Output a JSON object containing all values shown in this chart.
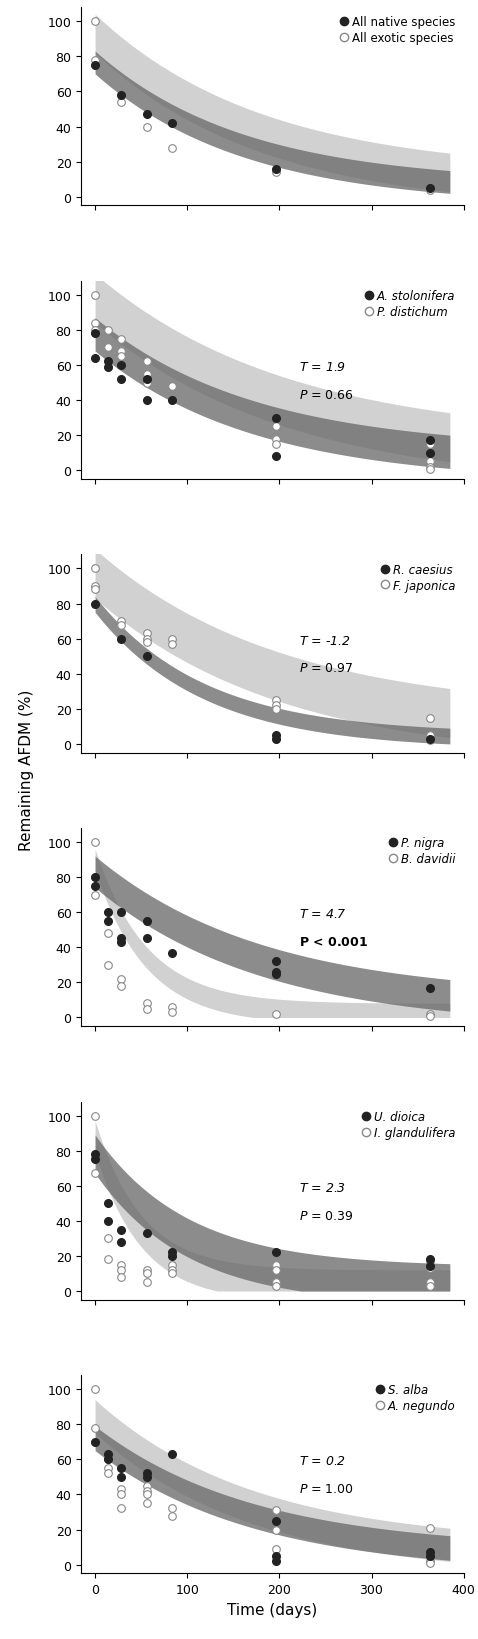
{
  "panels": [
    {
      "native_label": "All native species",
      "exotic_label": "All exotic species",
      "stats": null,
      "italic": false,
      "native_pts": [
        [
          0,
          75
        ],
        [
          28,
          58
        ],
        [
          56,
          47
        ],
        [
          84,
          42
        ],
        [
          196,
          16
        ],
        [
          364,
          5
        ]
      ],
      "exotic_pts": [
        [
          0,
          100
        ],
        [
          0,
          78
        ],
        [
          28,
          54
        ],
        [
          56,
          40
        ],
        [
          84,
          28
        ],
        [
          196,
          14
        ],
        [
          364,
          4
        ]
      ],
      "n_curve_params": [
        75,
        0.0062
      ],
      "e_curve_params": [
        90,
        0.0055
      ],
      "n_band_lo": 5,
      "n_band_hi": 8,
      "e_band_lo": 8,
      "e_band_hi": 14
    },
    {
      "native_label": "A. stolonifera",
      "exotic_label": "P. distichum",
      "stats": {
        "T": "1.9",
        "P": "0.66",
        "bold_p": false
      },
      "italic": true,
      "native_pts": [
        [
          0,
          78
        ],
        [
          0,
          64
        ],
        [
          14,
          62
        ],
        [
          14,
          59
        ],
        [
          28,
          60
        ],
        [
          28,
          52
        ],
        [
          56,
          52
        ],
        [
          56,
          40
        ],
        [
          84,
          40
        ],
        [
          196,
          8
        ],
        [
          196,
          30
        ],
        [
          364,
          17
        ],
        [
          364,
          10
        ]
      ],
      "exotic_pts": [
        [
          0,
          100
        ],
        [
          0,
          84
        ],
        [
          0,
          80
        ],
        [
          14,
          80
        ],
        [
          14,
          70
        ],
        [
          28,
          75
        ],
        [
          28,
          68
        ],
        [
          28,
          65
        ],
        [
          56,
          62
        ],
        [
          56,
          55
        ],
        [
          56,
          50
        ],
        [
          84,
          48
        ],
        [
          196,
          25
        ],
        [
          196,
          18
        ],
        [
          196,
          15
        ],
        [
          364,
          15
        ],
        [
          364,
          5
        ],
        [
          364,
          2
        ],
        [
          364,
          1
        ]
      ],
      "n_curve_params": [
        75,
        0.0058
      ],
      "e_curve_params": [
        94,
        0.0048
      ],
      "n_band_lo": 7,
      "n_band_hi": 12,
      "e_band_lo": 10,
      "e_band_hi": 18
    },
    {
      "native_label": "R. caesius",
      "exotic_label": "F. japonica",
      "stats": {
        "T": "-1.2",
        "P": "0.97",
        "bold_p": false
      },
      "italic": true,
      "native_pts": [
        [
          0,
          80
        ],
        [
          28,
          60
        ],
        [
          56,
          50
        ],
        [
          196,
          5
        ],
        [
          196,
          3
        ],
        [
          364,
          3
        ]
      ],
      "exotic_pts": [
        [
          0,
          100
        ],
        [
          0,
          90
        ],
        [
          0,
          88
        ],
        [
          28,
          70
        ],
        [
          28,
          68
        ],
        [
          56,
          63
        ],
        [
          56,
          60
        ],
        [
          56,
          58
        ],
        [
          84,
          60
        ],
        [
          84,
          57
        ],
        [
          196,
          25
        ],
        [
          196,
          22
        ],
        [
          196,
          20
        ],
        [
          364,
          15
        ],
        [
          364,
          5
        ],
        [
          364,
          2
        ]
      ],
      "n_curve_params": [
        78,
        0.0085
      ],
      "e_curve_params": [
        93,
        0.005
      ],
      "n_band_lo": 3,
      "n_band_hi": 6,
      "e_band_lo": 10,
      "e_band_hi": 18
    },
    {
      "native_label": "P. nigra",
      "exotic_label": "B. davidii",
      "stats": {
        "T": "4.7",
        "P": "< 0.001",
        "bold_p": true
      },
      "italic": true,
      "native_pts": [
        [
          0,
          80
        ],
        [
          0,
          75
        ],
        [
          14,
          60
        ],
        [
          14,
          55
        ],
        [
          28,
          60
        ],
        [
          28,
          45
        ],
        [
          28,
          43
        ],
        [
          56,
          55
        ],
        [
          56,
          45
        ],
        [
          84,
          37
        ],
        [
          196,
          32
        ],
        [
          196,
          26
        ],
        [
          196,
          25
        ],
        [
          364,
          17
        ]
      ],
      "exotic_pts": [
        [
          0,
          100
        ],
        [
          0,
          70
        ],
        [
          14,
          48
        ],
        [
          14,
          30
        ],
        [
          28,
          22
        ],
        [
          28,
          18
        ],
        [
          56,
          8
        ],
        [
          56,
          5
        ],
        [
          84,
          6
        ],
        [
          84,
          3
        ],
        [
          196,
          2
        ],
        [
          364,
          2
        ],
        [
          364,
          1
        ]
      ],
      "n_curve_params": [
        80,
        0.0055
      ],
      "e_curve_params": [
        88,
        0.018
      ],
      "n_band_lo": 6,
      "n_band_hi": 12,
      "e_band_lo": 4,
      "e_band_hi": 8
    },
    {
      "native_label": "U. dioica",
      "exotic_label": "I. glandulifera",
      "stats": {
        "T": "2.3",
        "P": "0.39",
        "bold_p": false
      },
      "italic": true,
      "native_pts": [
        [
          0,
          78
        ],
        [
          0,
          75
        ],
        [
          14,
          50
        ],
        [
          14,
          40
        ],
        [
          28,
          35
        ],
        [
          28,
          28
        ],
        [
          56,
          33
        ],
        [
          84,
          22
        ],
        [
          84,
          20
        ],
        [
          196,
          22
        ],
        [
          364,
          18
        ],
        [
          364,
          14
        ]
      ],
      "exotic_pts": [
        [
          0,
          100
        ],
        [
          0,
          67
        ],
        [
          14,
          30
        ],
        [
          14,
          18
        ],
        [
          28,
          15
        ],
        [
          28,
          12
        ],
        [
          28,
          8
        ],
        [
          56,
          12
        ],
        [
          56,
          10
        ],
        [
          56,
          5
        ],
        [
          84,
          15
        ],
        [
          84,
          12
        ],
        [
          84,
          10
        ],
        [
          196,
          15
        ],
        [
          196,
          12
        ],
        [
          196,
          5
        ],
        [
          196,
          3
        ],
        [
          364,
          17
        ],
        [
          364,
          13
        ],
        [
          364,
          5
        ],
        [
          364,
          3
        ]
      ],
      "n_curve_params": [
        75,
        0.01
      ],
      "e_curve_params": [
        85,
        0.02
      ],
      "n_band_lo": 8,
      "n_band_hi": 14,
      "e_band_lo": 6,
      "e_band_hi": 12
    },
    {
      "native_label": "S. alba",
      "exotic_label": "A. negundo",
      "stats": {
        "T": "0.2",
        "P": "1.00",
        "bold_p": false
      },
      "italic": true,
      "native_pts": [
        [
          0,
          70
        ],
        [
          14,
          63
        ],
        [
          14,
          60
        ],
        [
          28,
          55
        ],
        [
          28,
          50
        ],
        [
          56,
          52
        ],
        [
          56,
          50
        ],
        [
          84,
          63
        ],
        [
          196,
          25
        ],
        [
          196,
          5
        ],
        [
          196,
          2
        ],
        [
          364,
          7
        ],
        [
          364,
          5
        ]
      ],
      "exotic_pts": [
        [
          0,
          100
        ],
        [
          0,
          78
        ],
        [
          14,
          60
        ],
        [
          14,
          55
        ],
        [
          14,
          52
        ],
        [
          28,
          43
        ],
        [
          28,
          40
        ],
        [
          28,
          32
        ],
        [
          56,
          45
        ],
        [
          56,
          42
        ],
        [
          56,
          40
        ],
        [
          56,
          35
        ],
        [
          84,
          32
        ],
        [
          84,
          28
        ],
        [
          196,
          31
        ],
        [
          196,
          20
        ],
        [
          196,
          9
        ],
        [
          364,
          21
        ],
        [
          364,
          2
        ],
        [
          364,
          1
        ]
      ],
      "n_curve_params": [
        70,
        0.0058
      ],
      "e_curve_params": [
        82,
        0.0058
      ],
      "n_band_lo": 5,
      "n_band_hi": 9,
      "e_band_lo": 7,
      "e_band_hi": 12
    }
  ],
  "xlabel": "Time (days)",
  "ylabel": "Remaining AFDM (%)",
  "xlim": [
    -15,
    390
  ],
  "ylim": [
    -5,
    108
  ],
  "xticks": [
    0,
    100,
    200,
    300,
    400
  ],
  "yticks": [
    0,
    20,
    40,
    60,
    80,
    100
  ],
  "native_color": "#222222",
  "exotic_marker_face": "#ffffff",
  "exotic_marker_edge": "#888888",
  "native_band_color": "#666666",
  "exotic_band_color": "#cccccc",
  "native_band_alpha": 0.75,
  "exotic_band_alpha": 0.9,
  "marker_size": 5.5,
  "legend_marker_size": 6,
  "figsize": [
    4.78,
    16.4
  ],
  "dpi": 100
}
